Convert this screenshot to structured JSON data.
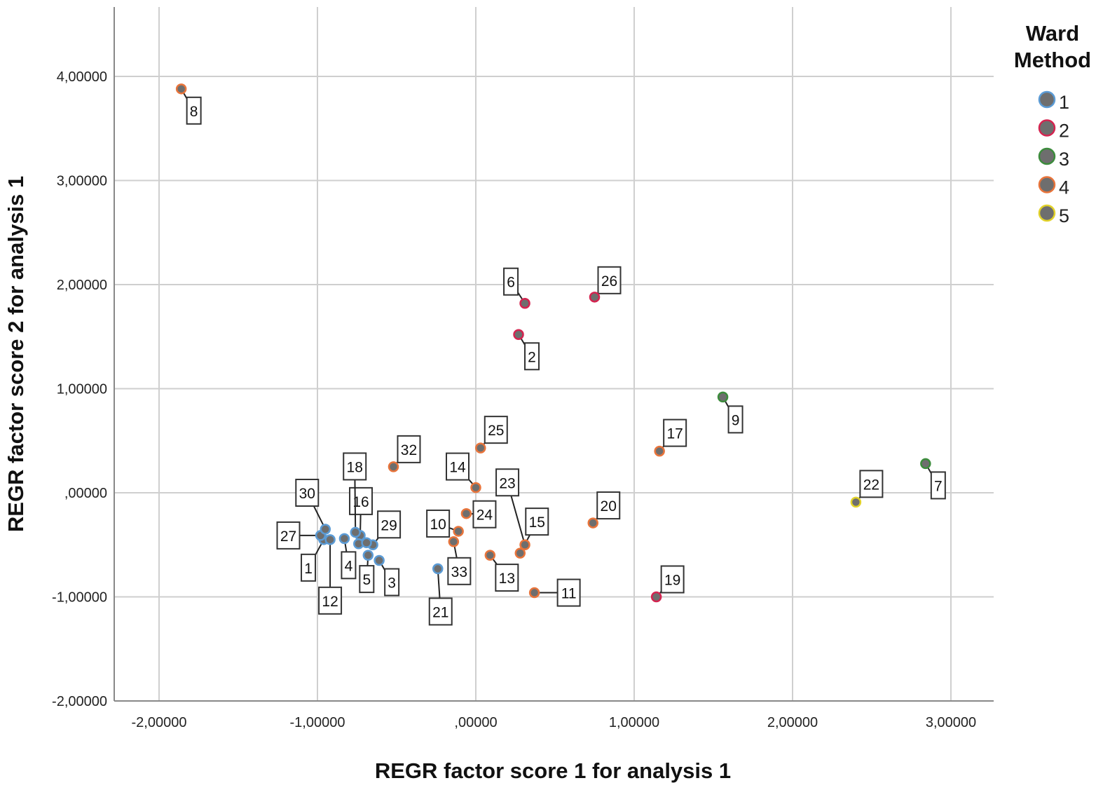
{
  "chart_data": {
    "type": "scatter",
    "title": "",
    "xlabel": "REGR factor score   1 for analysis 1",
    "ylabel": "REGR factor score   2 for analysis 1",
    "xlim": [
      -2.28,
      3.28
    ],
    "ylim": [
      -2,
      4.67
    ],
    "xticks": [
      -2,
      -1,
      0,
      1,
      2,
      3
    ],
    "xtick_labels": [
      "-2,00000",
      "-1,00000",
      ",00000",
      "1,00000",
      "2,00000",
      "3,00000"
    ],
    "yticks": [
      4,
      3,
      2,
      1,
      0,
      -1,
      -2
    ],
    "ytick_labels": [
      "4,00000",
      "3,00000",
      "2,00000",
      "1,00000",
      ",00000",
      "-1,00000",
      "-2,00000"
    ],
    "grid": true,
    "legend": {
      "title": "Ward Method",
      "placement": "right",
      "entries": [
        {
          "name": "1",
          "color": "#5b9bd5"
        },
        {
          "name": "2",
          "color": "#d42450"
        },
        {
          "name": "3",
          "color": "#3c8c3c"
        },
        {
          "name": "4",
          "color": "#e8743b"
        },
        {
          "name": "5",
          "color": "#e2d22a"
        }
      ]
    },
    "marker_fill": "#6e6e6e",
    "points": [
      {
        "label": "1",
        "x": -0.96,
        "y": -0.45,
        "cluster": "1"
      },
      {
        "label": "2",
        "x": 0.27,
        "y": 1.52,
        "cluster": "2"
      },
      {
        "label": "3",
        "x": -0.61,
        "y": -0.65,
        "cluster": "1"
      },
      {
        "label": "4",
        "x": -0.83,
        "y": -0.44,
        "cluster": "1"
      },
      {
        "label": "5",
        "x": -0.68,
        "y": -0.6,
        "cluster": "1"
      },
      {
        "label": "6",
        "x": 0.31,
        "y": 1.82,
        "cluster": "2"
      },
      {
        "label": "7",
        "x": 2.84,
        "y": 0.28,
        "cluster": "3"
      },
      {
        "label": "8",
        "x": -1.86,
        "y": 3.88,
        "cluster": "4"
      },
      {
        "label": "9",
        "x": 1.56,
        "y": 0.92,
        "cluster": "3"
      },
      {
        "label": "10",
        "x": -0.11,
        "y": -0.37,
        "cluster": "4"
      },
      {
        "label": "11",
        "x": 0.37,
        "y": -0.96,
        "cluster": "4"
      },
      {
        "label": "12",
        "x": -0.92,
        "y": -0.45,
        "cluster": "1"
      },
      {
        "label": "13",
        "x": 0.09,
        "y": -0.6,
        "cluster": "4"
      },
      {
        "label": "14",
        "x": 0.0,
        "y": 0.05,
        "cluster": "4"
      },
      {
        "label": "15",
        "x": 0.28,
        "y": -0.58,
        "cluster": "4"
      },
      {
        "label": "16",
        "x": -0.73,
        "y": -0.41,
        "cluster": "1"
      },
      {
        "label": "17",
        "x": 1.16,
        "y": 0.4,
        "cluster": "4"
      },
      {
        "label": "18",
        "x": -0.76,
        "y": -0.38,
        "cluster": "1"
      },
      {
        "label": "19",
        "x": 1.14,
        "y": -1.0,
        "cluster": "2"
      },
      {
        "label": "20",
        "x": 0.74,
        "y": -0.29,
        "cluster": "4"
      },
      {
        "label": "21",
        "x": -0.24,
        "y": -0.73,
        "cluster": "1"
      },
      {
        "label": "22",
        "x": 2.4,
        "y": -0.09,
        "cluster": "5"
      },
      {
        "label": "23",
        "x": 0.31,
        "y": -0.5,
        "cluster": "4"
      },
      {
        "label": "24",
        "x": -0.06,
        "y": -0.2,
        "cluster": "4"
      },
      {
        "label": "25",
        "x": 0.03,
        "y": 0.43,
        "cluster": "4"
      },
      {
        "label": "26",
        "x": 0.75,
        "y": 1.88,
        "cluster": "2"
      },
      {
        "label": "27",
        "x": -0.98,
        "y": -0.41,
        "cluster": "1"
      },
      {
        "label": "",
        "x": -0.74,
        "y": -0.49,
        "cluster": "1"
      },
      {
        "label": "29",
        "x": -0.65,
        "y": -0.5,
        "cluster": "1"
      },
      {
        "label": "30",
        "x": -0.95,
        "y": -0.35,
        "cluster": "1"
      },
      {
        "label": "",
        "x": -0.69,
        "y": -0.48,
        "cluster": "1"
      },
      {
        "label": "32",
        "x": -0.52,
        "y": 0.25,
        "cluster": "4"
      },
      {
        "label": "33",
        "x": -0.14,
        "y": -0.47,
        "cluster": "4"
      }
    ]
  }
}
